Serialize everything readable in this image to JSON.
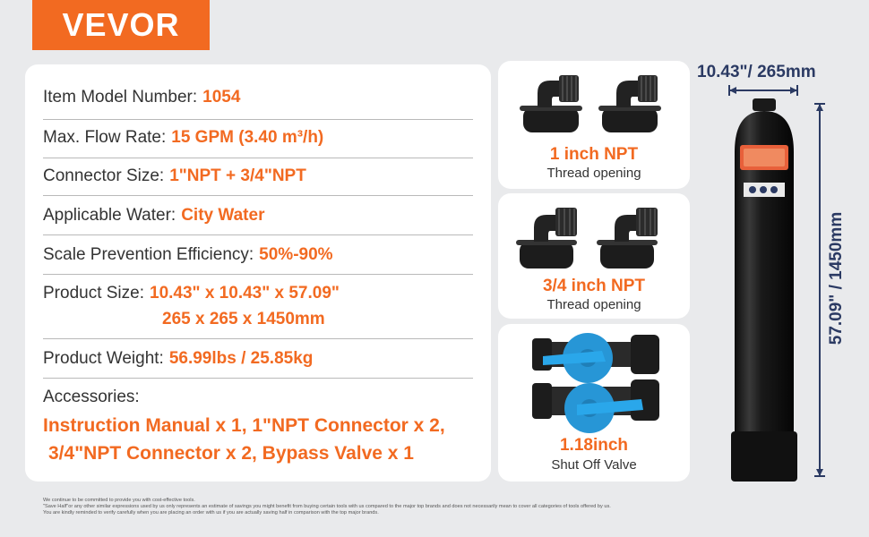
{
  "brand": {
    "logo": "VEVOR",
    "accent_color": "#f26a21"
  },
  "specs": {
    "model": {
      "label": "Item Model Number:",
      "value": "1054"
    },
    "flow": {
      "label": "Max. Flow Rate:",
      "value": "15 GPM (3.40 m³/h)"
    },
    "connector": {
      "label": "Connector Size:",
      "value": "1\"NPT + 3/4\"NPT"
    },
    "water": {
      "label": "Applicable Water:",
      "value": "City Water"
    },
    "scale": {
      "label": "Scale Prevention Efficiency:",
      "value": "50%-90%"
    },
    "size": {
      "label": "Product Size:",
      "value_line1": "10.43\" x 10.43\" x 57.09\"",
      "value_line2": "265 x 265 x 1450mm"
    },
    "weight": {
      "label": "Product Weight:",
      "value": "56.99lbs / 25.85kg"
    },
    "accessories": {
      "label": "Accessories:",
      "line1": "Instruction Manual x 1, 1\"NPT Connector x 2,",
      "line2": "3/4\"NPT Connector x 2, Bypass Valve x 1"
    }
  },
  "cards": [
    {
      "title": "1 inch NPT",
      "subtitle": "Thread opening"
    },
    {
      "title": "3/4 inch NPT",
      "subtitle": "Thread opening"
    },
    {
      "title": "1.18inch",
      "subtitle": "Shut Off Valve"
    }
  ],
  "dimensions": {
    "width": "10.43\"/ 265mm",
    "height": "57.09\" / 1450mm"
  },
  "footnote": {
    "line1": "We continue to be committed to provide you with cost-effective tools.",
    "line2": "\"Save Half\"or any other similar expressions used by us only represents an estimate of savings you might benefit from buying certain tools with us compared to the major top brands and does not necessarily mean to cover all categories of tools offered by us.",
    "line3": "You are kindly reminded to verify carefully when you are placing an order with us if you are actually saving half in comparison with the top major brands."
  }
}
